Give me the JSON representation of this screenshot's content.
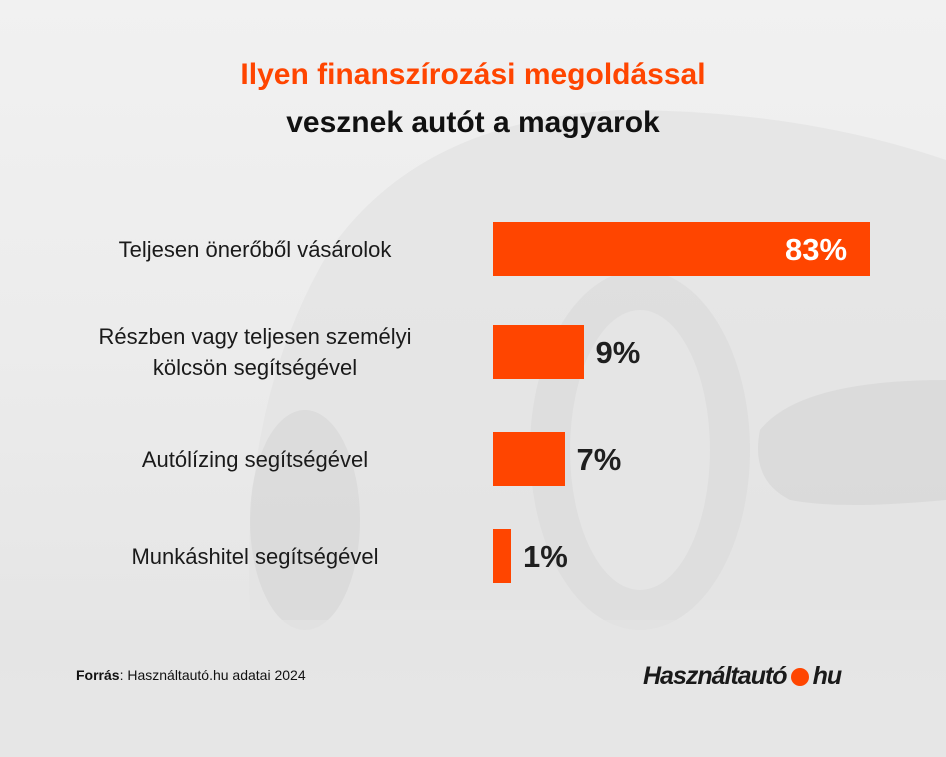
{
  "title_line1": "Ilyen finanszírozási megoldással",
  "title_line2": "vesznek autót a magyarok",
  "chart_data": {
    "type": "bar",
    "orientation": "horizontal",
    "title": "Ilyen finanszírozási megoldással vesznek autót a magyarok",
    "categories": [
      "Teljesen önerőből vásárolok",
      "Részben vagy teljesen személyi kölcsön segítségével",
      "Autólízing segítségével",
      "Munkáshitel segítségével"
    ],
    "category_lines": [
      [
        "Teljesen önerőből vásárolok"
      ],
      [
        "Részben vagy teljesen személyi",
        "kölcsön segítségével"
      ],
      [
        "Autólízing segítségével"
      ],
      [
        "Munkáshitel segítségével"
      ]
    ],
    "values": [
      83,
      9,
      7,
      1
    ],
    "value_labels": [
      "83%",
      "9%",
      "7%",
      "1%"
    ],
    "unit": "%",
    "bar_color": "#ff4500",
    "xlabel": "",
    "ylabel": ""
  },
  "source_label": "Forrás",
  "source_text": ": Használtautó.hu adatai 2024",
  "logo_left": "Használtautó",
  "logo_right": "hu"
}
